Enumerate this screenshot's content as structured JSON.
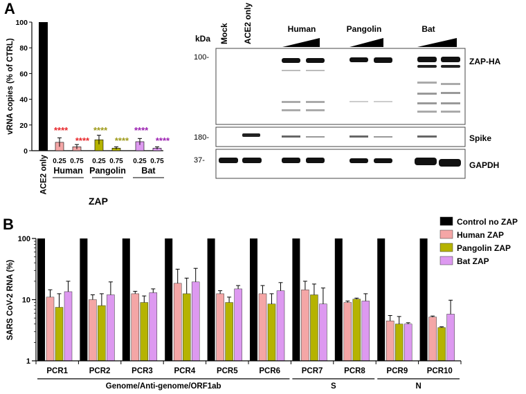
{
  "colors": {
    "control": "#000000",
    "human": "#f4a6a6",
    "pangolin": "#b5b300",
    "bat": "#dd99f0",
    "human_star": "#e8262a",
    "pangolin_star": "#9e9a1a",
    "bat_star": "#9b1fb0"
  },
  "chart_data": [
    {
      "type": "bar",
      "panel_label": "A",
      "ylabel": "vRNA copies (% of CTRL)",
      "ylim": [
        0,
        100
      ],
      "yticks": [
        "0",
        "20",
        "40",
        "60",
        "80",
        "100"
      ],
      "xtitle": "ZAP",
      "control": {
        "label": "ACE2 only",
        "value": 100
      },
      "groups": [
        {
          "name": "Human",
          "color_key": "human",
          "star_color_key": "human_star",
          "doses": [
            "0.25",
            "0.75"
          ],
          "values": [
            6.5,
            3
          ],
          "errors": [
            3.5,
            1.8
          ],
          "stars": [
            "****",
            "****"
          ]
        },
        {
          "name": "Pangolin",
          "color_key": "pangolin",
          "star_color_key": "pangolin_star",
          "doses": [
            "0.25",
            "0.75"
          ],
          "values": [
            8.5,
            2
          ],
          "errors": [
            3.5,
            1.0
          ],
          "stars": [
            "****",
            "****"
          ]
        },
        {
          "name": "Bat",
          "color_key": "bat",
          "star_color_key": "bat_star",
          "doses": [
            "0.25",
            "0.75"
          ],
          "values": [
            7,
            2
          ],
          "errors": [
            2.5,
            1.0
          ],
          "stars": [
            "****",
            "****"
          ]
        }
      ]
    },
    {
      "type": "bar",
      "panel_label": "B",
      "ylabel": "SARS CoV-2 RNA (%)",
      "yscale": "log",
      "ylim": [
        1,
        100
      ],
      "yticks": [
        "1",
        "10",
        "100"
      ],
      "categories": [
        "PCR1",
        "PCR2",
        "PCR3",
        "PCR4",
        "PCR5",
        "PCR6",
        "PCR7",
        "PCR8",
        "PCR9",
        "PCR10"
      ],
      "series": [
        {
          "name": "Control no ZAP",
          "color_key": "control",
          "values": [
            100,
            100,
            100,
            100,
            100,
            100,
            100,
            100,
            100,
            100
          ],
          "errors": [
            0,
            0,
            0,
            0,
            0,
            0,
            0,
            0,
            0,
            0
          ]
        },
        {
          "name": "Human ZAP",
          "color_key": "human",
          "values": [
            11,
            10,
            12.5,
            18.5,
            12.5,
            12.5,
            14.5,
            9,
            4.5,
            5.2
          ],
          "errors": [
            3.5,
            2,
            1.2,
            13,
            1.5,
            4.5,
            5.5,
            0.5,
            1,
            0.2
          ]
        },
        {
          "name": "Pangolin ZAP",
          "color_key": "pangolin",
          "values": [
            7.5,
            8,
            9,
            12.5,
            9,
            8.5,
            12,
            10.2,
            4,
            3.5
          ],
          "errors": [
            5,
            4.5,
            2.5,
            10,
            2,
            4,
            6,
            0.4,
            1.3,
            0.1
          ]
        },
        {
          "name": "Bat ZAP",
          "color_key": "bat",
          "values": [
            13.5,
            12,
            13,
            19.5,
            15,
            14,
            8.5,
            9.5,
            4,
            5.8
          ],
          "errors": [
            6.5,
            7.5,
            2,
            13,
            2,
            5,
            7,
            3,
            0.2,
            4
          ]
        }
      ],
      "region_brackets": [
        {
          "label": "Genome/Anti-genome/ORF1ab",
          "from": 0,
          "to": 5
        },
        {
          "label": "S",
          "from": 6,
          "to": 7
        },
        {
          "label": "N",
          "from": 8,
          "to": 9
        }
      ],
      "legend_position": "top-right"
    }
  ],
  "blot": {
    "kda_label": "kDa",
    "lanes": {
      "mock": "Mock",
      "ace2": "ACE2 only",
      "human": "Human",
      "pangolin": "Pangolin",
      "bat": "Bat"
    },
    "markers": [
      "100-",
      "180-",
      "37-"
    ],
    "bands": [
      "ZAP-HA",
      "Spike",
      "GAPDH"
    ]
  }
}
